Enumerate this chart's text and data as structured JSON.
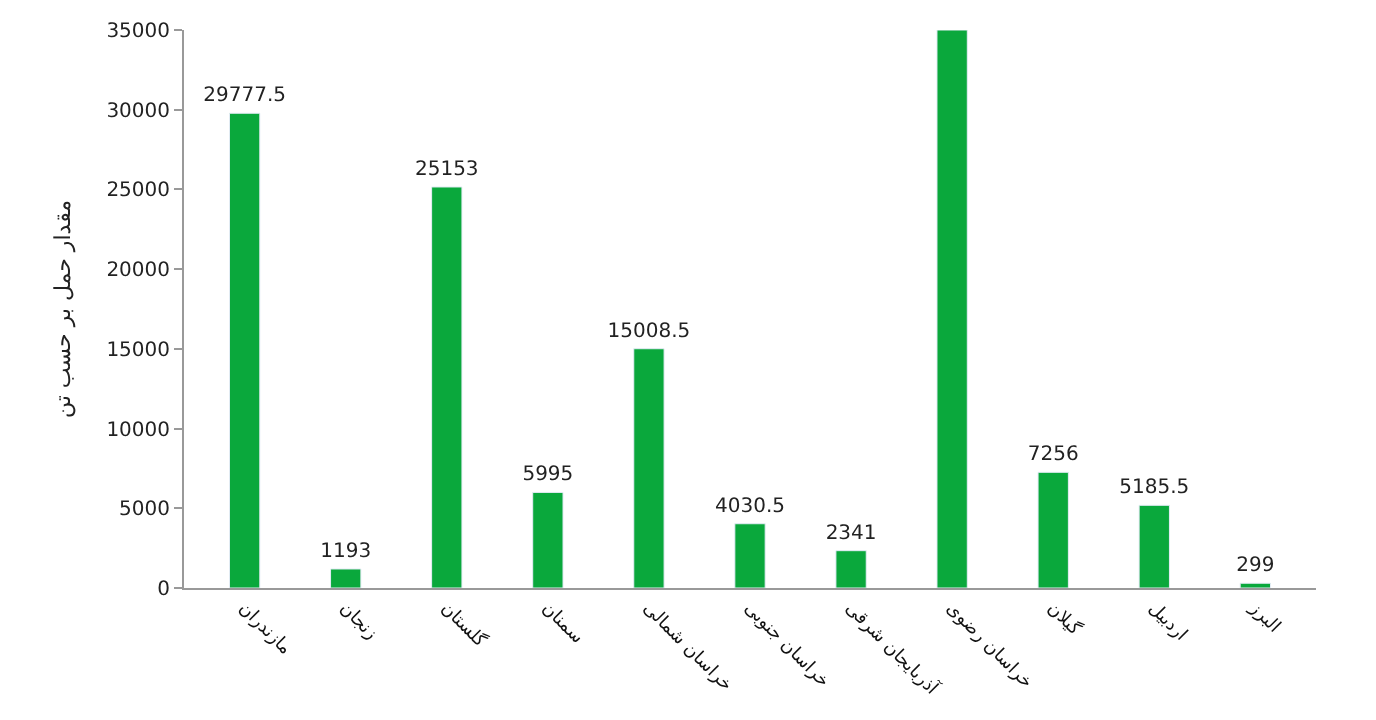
{
  "chart_data": {
    "type": "bar",
    "ylabel": "مقدار حمل بر حسب تن",
    "categories": [
      "مازندران",
      "زنجان",
      "گلستان",
      "سمنان",
      "خراسان شمالی",
      "خراسان جنوبی",
      "آذربایجان شرقی",
      "خراسان رضوی",
      "گیلان",
      "اردبیل",
      "البرز"
    ],
    "values": [
      29777.5,
      1193,
      25153,
      5995,
      15008.5,
      4030.5,
      2341,
      35000,
      7256,
      5185.5,
      299
    ],
    "value_labels": [
      "29777.5",
      "1193",
      "25153",
      "5995",
      "15008.5",
      "4030.5",
      "2341",
      null,
      "7256",
      "5185.5",
      "299"
    ],
    "color": "#0aa83c",
    "ylim": [
      0,
      35000
    ],
    "yticks": [
      0,
      5000,
      10000,
      15000,
      20000,
      25000,
      30000,
      35000
    ],
    "legend": false
  }
}
